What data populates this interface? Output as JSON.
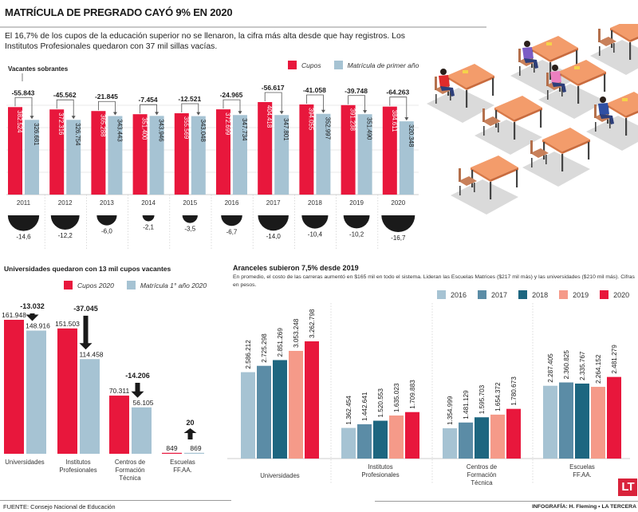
{
  "header": {
    "title": "MATRÍCULA DE PREGRADO CAYÓ 9% EN 2020",
    "intro": "El 16,7% de los cupos de la educación superior no se llenaron, la cifra más alta desde que hay registros. Los Institutos Profesionales quedaron con 37 mil sillas vacías."
  },
  "colors": {
    "cupos": "#e8173c",
    "matricula": "#a6c3d3",
    "y2016": "#a6c3d3",
    "y2017": "#5b8ca6",
    "y2018": "#1d6680",
    "y2019": "#f59a89",
    "y2020": "#e8173c",
    "semicircle": "#1a1a1a",
    "logo": "#d9233b"
  },
  "chart_data": [
    {
      "type": "bar",
      "title": "Vacantes sobrantes",
      "categories": [
        "2011",
        "2012",
        "2013",
        "2014",
        "2015",
        "2016",
        "2017",
        "2018",
        "2019",
        "2020"
      ],
      "series": [
        {
          "name": "Cupos",
          "values": [
            382524,
            372316,
            365288,
            351400,
            355569,
            372699,
            404418,
            394055,
            391238,
            384611
          ],
          "labels": [
            "382.524",
            "372.316",
            "365.288",
            "351.400",
            "355.569",
            "372.699",
            "404.418",
            "394.055",
            "391.238",
            "384.611"
          ]
        },
        {
          "name": "Matrícula de primer año",
          "values": [
            326681,
            326754,
            343443,
            343946,
            343048,
            347734,
            347801,
            352997,
            351490,
            320348
          ],
          "labels": [
            "326.681",
            "326.754",
            "343.443",
            "343.946",
            "343.048",
            "347.734",
            "347.801",
            "352.997",
            "351.490",
            "320.348"
          ]
        }
      ],
      "vacantes": [
        "-55.843",
        "-45.562",
        "-21.845",
        "-7.454",
        "-12.521",
        "-24.965",
        "-56.617",
        "-41.058",
        "-39.748",
        "-64.263"
      ],
      "vacantes_pct": [
        -14.6,
        -12.2,
        -6.0,
        -2.1,
        -3.5,
        -6.7,
        -14.0,
        -10.4,
        -10.2,
        -16.7
      ],
      "vacantes_pct_labels": [
        "-14,6",
        "-12,2",
        "-6,0",
        "-2,1",
        "-3,5",
        "-6,7",
        "-14,0",
        "-10,4",
        "-10,2",
        "-16,7"
      ],
      "ylim": [
        0,
        420000
      ],
      "legend": "top-right"
    },
    {
      "type": "bar",
      "title": "Universidades quedaron con 13 mil cupos vacantes",
      "categories": [
        "Universidades",
        "Institutos Profesionales",
        "Centros de Formación Técnica",
        "Escuelas FF.AA."
      ],
      "category_lines": [
        [
          "Universidades"
        ],
        [
          "Institutos",
          "Profesionales"
        ],
        [
          "Centros de",
          "Formación",
          "Técnica"
        ],
        [
          "Escuelas",
          "FF.AA."
        ]
      ],
      "series": [
        {
          "name": "Cupos 2020",
          "values": [
            161948,
            151503,
            70311,
            849
          ],
          "labels": [
            "161.948",
            "151.503",
            "70.311",
            "849"
          ]
        },
        {
          "name": "Matrícula 1° año 2020",
          "values": [
            148916,
            114458,
            56105,
            869
          ],
          "labels": [
            "148.916",
            "114.458",
            "56.105",
            "869"
          ]
        }
      ],
      "differences": [
        "-13.032",
        "-37.045",
        "-14.206",
        "20"
      ],
      "difference_direction": [
        "down",
        "down",
        "down",
        "up"
      ],
      "ylim": [
        0,
        165000
      ],
      "legend": "top"
    },
    {
      "type": "bar",
      "title": "Aranceles subieron 7,5% desde 2019",
      "subtitle": "En promedio, el costo de las carreras aumentó en $165 mil en todo el sistema. Lideran las Escuelas Matrices ($217 mil más) y las universidades ($210 mil más). Cifras en pesos.",
      "categories": [
        "Universidades",
        "Institutos Profesionales",
        "Centros de Formación Técnica",
        "Escuelas FF.AA."
      ],
      "category_lines": [
        [
          "Universidades"
        ],
        [
          "Institutos",
          "Profesionales"
        ],
        [
          "Centros de",
          "Formación",
          "Técnica"
        ],
        [
          "Escuelas",
          "FF.AA."
        ]
      ],
      "series": [
        {
          "name": "2016",
          "values": [
            2586212,
            1362454,
            1354999,
            2287405
          ],
          "labels": [
            "2.586.212",
            "1.362.454",
            "1.354.999",
            "2.287.405"
          ]
        },
        {
          "name": "2017",
          "values": [
            2725298,
            1442641,
            1481129,
            2360825
          ],
          "labels": [
            "2.725.298",
            "1.442.641",
            "1.481.129",
            "2.360.825"
          ]
        },
        {
          "name": "2018",
          "values": [
            2851269,
            1520553,
            1595703,
            2335767
          ],
          "labels": [
            "2.851.269",
            "1.520.553",
            "1.595.703",
            "2.335.767"
          ]
        },
        {
          "name": "2019",
          "values": [
            3053248,
            1635023,
            1654372,
            2264152
          ],
          "labels": [
            "3.053.248",
            "1.635.023",
            "1.654.372",
            "2.264.152"
          ]
        },
        {
          "name": "2020",
          "values": [
            3262798,
            1709883,
            1780673,
            2481279
          ],
          "labels": [
            "3.262.798",
            "1.709.883",
            "1.780.673",
            "2.481.279"
          ]
        }
      ],
      "ylim": [
        1000000,
        3400000
      ],
      "legend": "top-right"
    }
  ],
  "legends": {
    "top": [
      "Cupos",
      "Matrícula de primer año"
    ],
    "unis": [
      "Cupos 2020",
      "Matrícula 1° año 2020"
    ],
    "aranceles": [
      "2016",
      "2017",
      "2018",
      "2019",
      "2020"
    ]
  },
  "footer": {
    "source": "FUENTE: Consejo Nacional de Educación",
    "credit": "INFOGRAFÍA: H. Fleming • LA TERCERA",
    "logo": "LT"
  },
  "illustration": {
    "description": "empty-classroom-desks-illustration"
  }
}
